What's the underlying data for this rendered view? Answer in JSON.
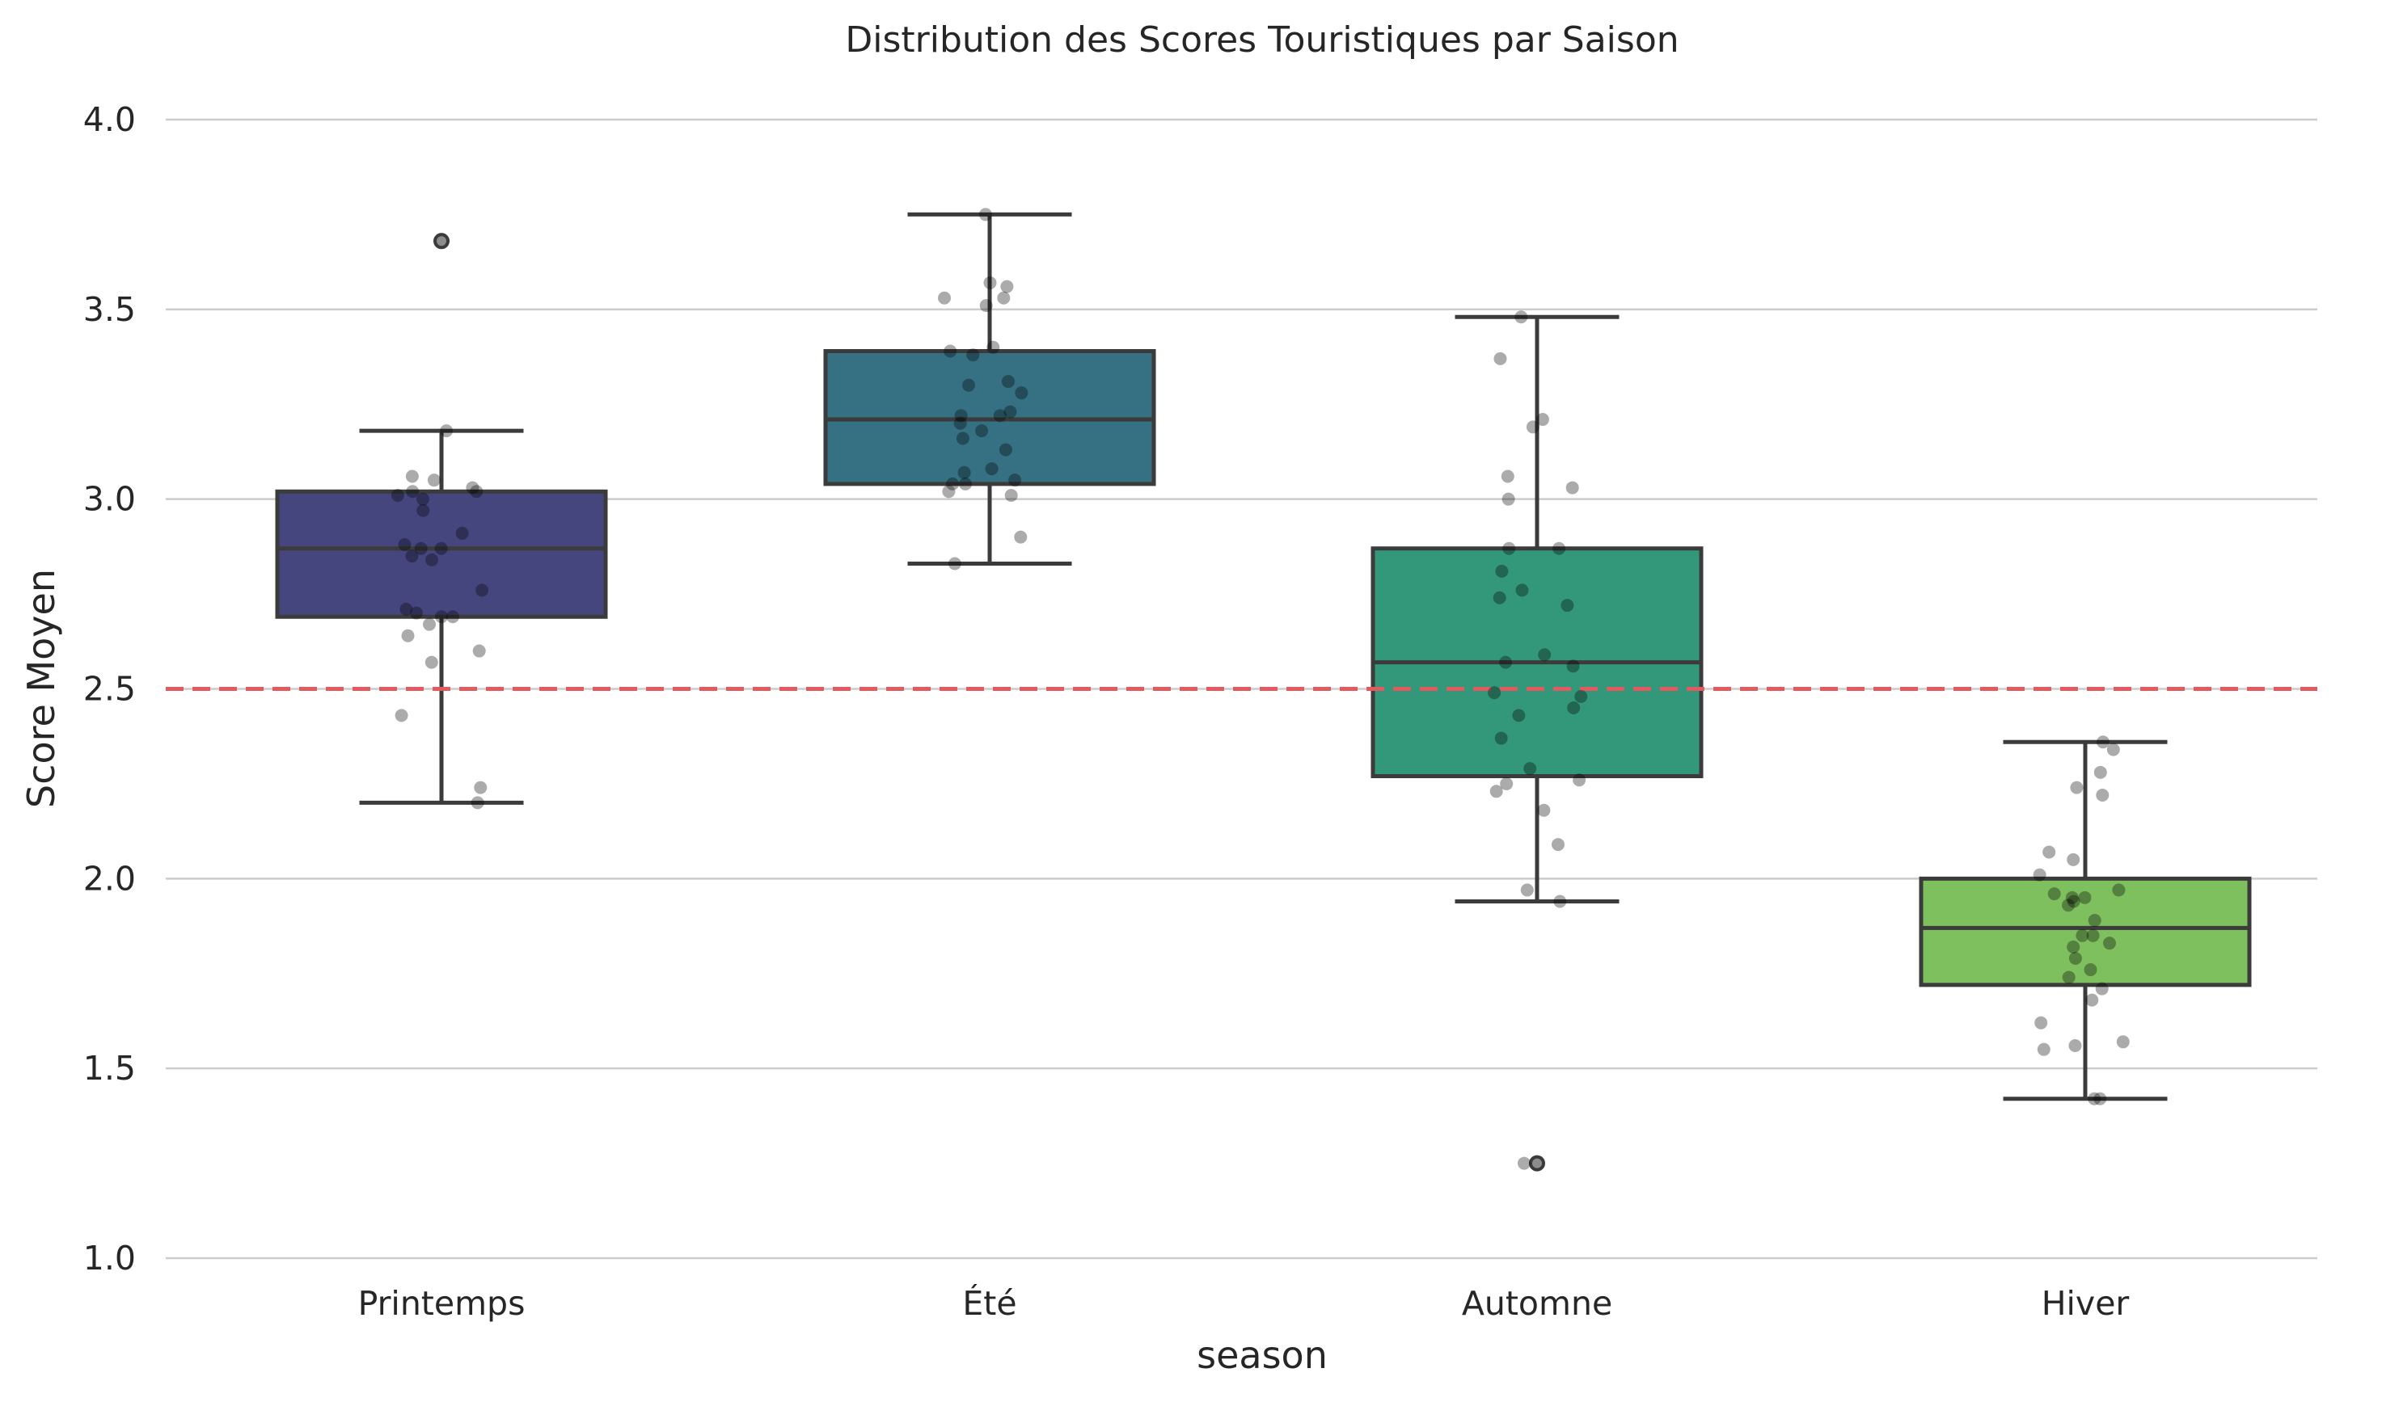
{
  "chart_data": {
    "type": "box",
    "title": "Distribution des Scores Touristiques par Saison",
    "xlabel": "season",
    "ylabel": "Score Moyen",
    "ylim": [
      1.0,
      4.0
    ],
    "yticks": [
      "1.0",
      "1.5",
      "2.0",
      "2.5",
      "3.0",
      "3.5",
      "4.0"
    ],
    "grid": "horizontal",
    "reference_line": {
      "y": 2.5,
      "color": "#e05a5f",
      "style": "dashed"
    },
    "categories": [
      "Printemps",
      "Été",
      "Automne",
      "Hiver"
    ],
    "boxes": [
      {
        "category": "Printemps",
        "color": "#46467f",
        "whisker_low": 2.2,
        "q1": 2.69,
        "median": 2.87,
        "q3": 3.02,
        "whisker_high": 3.18,
        "outliers": [
          3.68
        ],
        "points": [
          2.2,
          2.24,
          2.43,
          2.57,
          2.6,
          2.64,
          2.67,
          2.69,
          2.69,
          2.7,
          2.71,
          2.76,
          2.84,
          2.85,
          2.87,
          2.87,
          2.88,
          2.91,
          2.97,
          3.0,
          3.01,
          3.02,
          3.02,
          3.03,
          3.05,
          3.06,
          3.18
        ]
      },
      {
        "category": "Été",
        "color": "#357083",
        "whisker_low": 2.83,
        "q1": 3.04,
        "median": 3.21,
        "q3": 3.39,
        "whisker_high": 3.75,
        "outliers": [],
        "points": [
          2.83,
          2.9,
          3.01,
          3.02,
          3.04,
          3.04,
          3.05,
          3.07,
          3.08,
          3.13,
          3.16,
          3.18,
          3.2,
          3.22,
          3.22,
          3.23,
          3.28,
          3.3,
          3.31,
          3.38,
          3.39,
          3.4,
          3.51,
          3.53,
          3.53,
          3.56,
          3.57,
          3.75
        ]
      },
      {
        "category": "Automne",
        "color": "#33987a",
        "whisker_low": 1.94,
        "q1": 2.27,
        "median": 2.57,
        "q3": 2.87,
        "whisker_high": 3.48,
        "outliers": [
          1.25
        ],
        "points": [
          1.25,
          1.94,
          1.97,
          2.09,
          2.18,
          2.23,
          2.25,
          2.26,
          2.29,
          2.37,
          2.43,
          2.45,
          2.48,
          2.49,
          2.56,
          2.57,
          2.59,
          2.72,
          2.74,
          2.76,
          2.81,
          2.87,
          2.87,
          3.0,
          3.03,
          3.06,
          3.19,
          3.21,
          3.37,
          3.48
        ]
      },
      {
        "category": "Hiver",
        "color": "#7ec05e",
        "whisker_low": 1.42,
        "q1": 1.72,
        "median": 1.87,
        "q3": 2.0,
        "whisker_high": 2.36,
        "outliers": [],
        "points": [
          1.42,
          1.42,
          1.55,
          1.56,
          1.57,
          1.62,
          1.68,
          1.71,
          1.74,
          1.76,
          1.79,
          1.82,
          1.83,
          1.85,
          1.85,
          1.89,
          1.93,
          1.94,
          1.95,
          1.95,
          1.96,
          1.97,
          2.01,
          2.05,
          2.07,
          2.22,
          2.24,
          2.28,
          2.34,
          2.36
        ]
      }
    ]
  }
}
